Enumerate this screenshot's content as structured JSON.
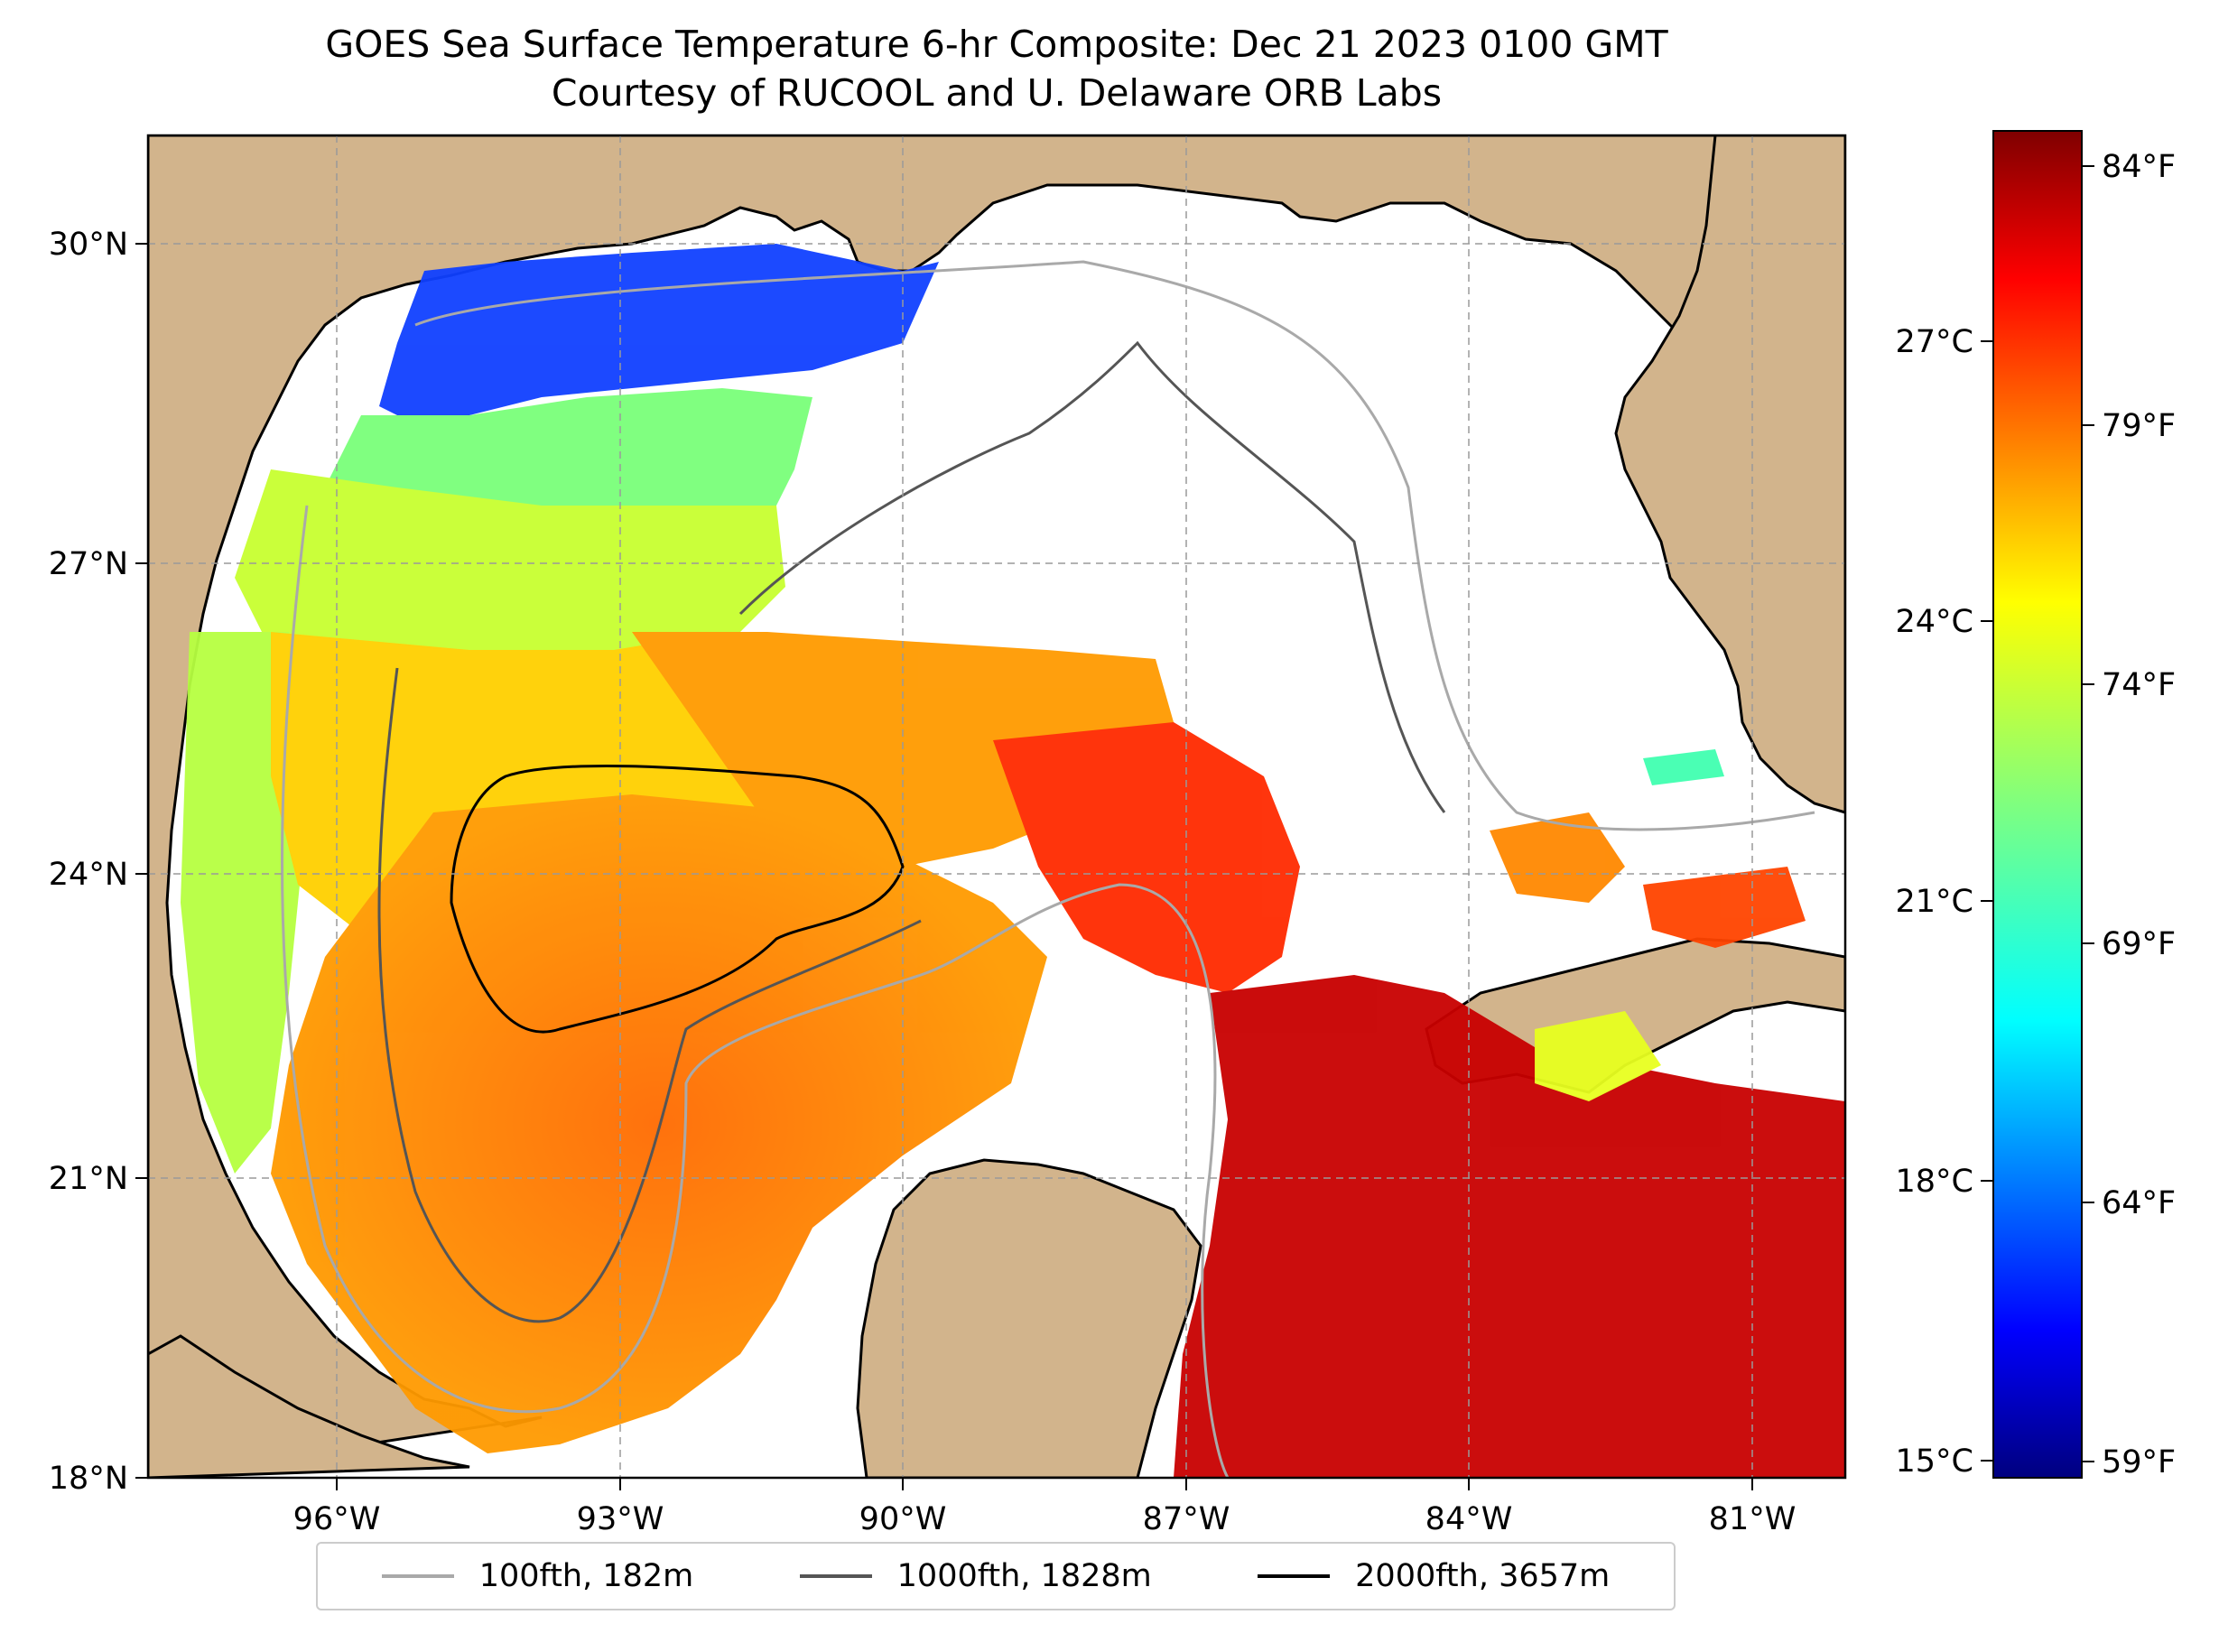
{
  "title": "GOES Sea Surface Temperature 6-hr Composite: Dec 21 2023 0100 GMT",
  "subtitle": "Courtesy of RUCOOL and U. Delaware ORB Labs",
  "map": {
    "lon_ticks": [
      "96°W",
      "93°W",
      "90°W",
      "87°W",
      "84°W",
      "81°W"
    ],
    "lat_ticks": [
      "30°N",
      "27°N",
      "24°N",
      "21°N",
      "18°N"
    ],
    "land_color": "#d2b48c",
    "gridlines": "dashed-gray"
  },
  "colorbar": {
    "colormap": "jet",
    "fahrenheit_ticks": [
      "84°F",
      "79°F",
      "74°F",
      "69°F",
      "64°F",
      "59°F"
    ],
    "celsius_ticks": [
      "27°C",
      "24°C",
      "21°C",
      "18°C",
      "15°C"
    ]
  },
  "legend": {
    "items": [
      {
        "label": "100fth, 182m",
        "color": "#a9a9a9"
      },
      {
        "label": "1000fth, 1828m",
        "color": "#555555"
      },
      {
        "label": "2000fth, 3657m",
        "color": "#000000"
      }
    ]
  }
}
